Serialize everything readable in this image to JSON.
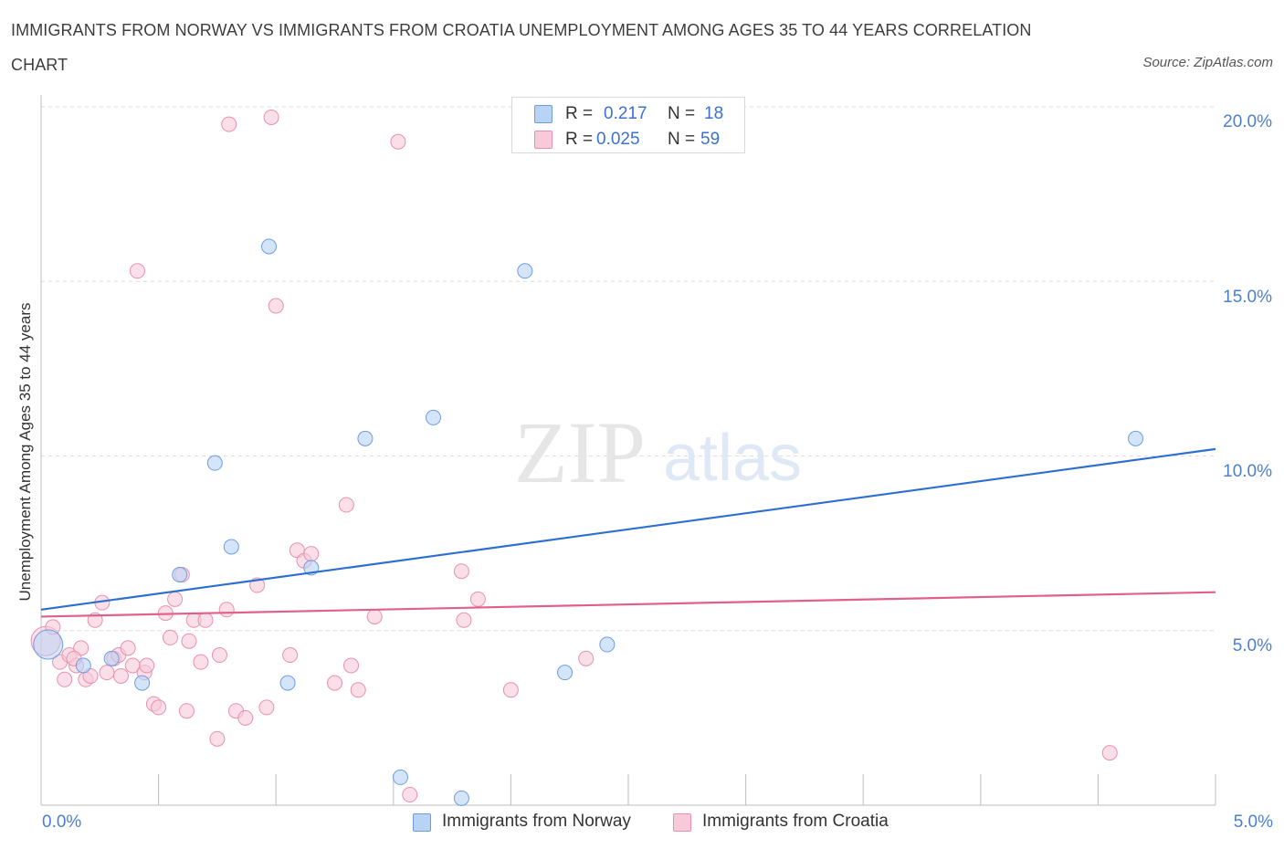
{
  "title": "IMMIGRANTS FROM NORWAY VS IMMIGRANTS FROM CROATIA UNEMPLOYMENT AMONG AGES 35 TO 44 YEARS CORRELATION CHART",
  "source": "Source: ZipAtlas.com",
  "watermark": {
    "zip": "ZIP",
    "atlas": "atlas"
  },
  "colors": {
    "norway_fill": "#b9d3f5",
    "norway_stroke": "#6d9de0",
    "norway_line": "#2d6fd0",
    "croatia_fill": "#f8c9d8",
    "croatia_stroke": "#e890ad",
    "croatia_line": "#e0608c",
    "axis_text": "#4a7fd1",
    "grid": "#dcdcdc"
  },
  "stats": {
    "norway": {
      "r_label": "R =",
      "r_value": "0.217",
      "n_label": "N =",
      "n_value": "18"
    },
    "croatia": {
      "r_label": "R =",
      "r_value": "0.025",
      "n_label": "N =",
      "n_value": "59"
    }
  },
  "chart_data": {
    "type": "scatter",
    "title": "IMMIGRANTS FROM NORWAY VS IMMIGRANTS FROM CROATIA UNEMPLOYMENT AMONG AGES 35 TO 44 YEARS CORRELATION CHART",
    "xlabel": "",
    "ylabel": "Unemployment Among Ages 35 to 44 years",
    "xlim": [
      0,
      5
    ],
    "ylim": [
      0,
      20.4
    ],
    "x_tick_labels": {
      "left": "0.0%",
      "right": "5.0%"
    },
    "y_ticks": [
      {
        "value": 5,
        "label": "5.0%"
      },
      {
        "value": 10,
        "label": "10.0%"
      },
      {
        "value": 15,
        "label": "15.0%"
      },
      {
        "value": 20,
        "label": "20.0%"
      }
    ],
    "grid": true,
    "legend_position": "bottom-center",
    "series": [
      {
        "name": "Immigrants from Norway",
        "trend": {
          "x": [
            0,
            5
          ],
          "y": [
            5.6,
            10.2
          ]
        },
        "points": [
          {
            "x": 0.03,
            "y": 4.6,
            "big": true
          },
          {
            "x": 0.18,
            "y": 4.0
          },
          {
            "x": 0.3,
            "y": 4.2
          },
          {
            "x": 0.43,
            "y": 3.5
          },
          {
            "x": 0.59,
            "y": 6.6
          },
          {
            "x": 0.74,
            "y": 9.8
          },
          {
            "x": 0.81,
            "y": 7.4
          },
          {
            "x": 0.97,
            "y": 16.0
          },
          {
            "x": 1.05,
            "y": 3.5
          },
          {
            "x": 1.15,
            "y": 6.8
          },
          {
            "x": 1.38,
            "y": 10.5
          },
          {
            "x": 1.53,
            "y": 0.8
          },
          {
            "x": 1.67,
            "y": 11.1
          },
          {
            "x": 1.79,
            "y": 0.2
          },
          {
            "x": 2.06,
            "y": 15.3
          },
          {
            "x": 2.23,
            "y": 3.8
          },
          {
            "x": 2.41,
            "y": 4.6
          },
          {
            "x": 4.66,
            "y": 10.5
          }
        ]
      },
      {
        "name": "Immigrants from Croatia",
        "trend": {
          "x": [
            0,
            5
          ],
          "y": [
            5.4,
            6.1
          ]
        },
        "points": [
          {
            "x": 0.02,
            "y": 4.7,
            "big": true
          },
          {
            "x": 0.05,
            "y": 5.1
          },
          {
            "x": 0.08,
            "y": 4.1
          },
          {
            "x": 0.1,
            "y": 3.6
          },
          {
            "x": 0.12,
            "y": 4.3
          },
          {
            "x": 0.15,
            "y": 4.0
          },
          {
            "x": 0.17,
            "y": 4.5
          },
          {
            "x": 0.19,
            "y": 3.6
          },
          {
            "x": 0.21,
            "y": 3.7
          },
          {
            "x": 0.23,
            "y": 5.3
          },
          {
            "x": 0.26,
            "y": 5.8
          },
          {
            "x": 0.28,
            "y": 3.8
          },
          {
            "x": 0.31,
            "y": 4.2
          },
          {
            "x": 0.33,
            "y": 4.3
          },
          {
            "x": 0.34,
            "y": 3.7
          },
          {
            "x": 0.37,
            "y": 4.5
          },
          {
            "x": 0.39,
            "y": 4.0
          },
          {
            "x": 0.41,
            "y": 15.3
          },
          {
            "x": 0.44,
            "y": 3.8
          },
          {
            "x": 0.45,
            "y": 4.0
          },
          {
            "x": 0.48,
            "y": 2.9
          },
          {
            "x": 0.5,
            "y": 2.8
          },
          {
            "x": 0.53,
            "y": 5.5
          },
          {
            "x": 0.55,
            "y": 4.8
          },
          {
            "x": 0.57,
            "y": 5.9
          },
          {
            "x": 0.6,
            "y": 6.6
          },
          {
            "x": 0.62,
            "y": 2.7
          },
          {
            "x": 0.63,
            "y": 4.7
          },
          {
            "x": 0.65,
            "y": 5.3
          },
          {
            "x": 0.68,
            "y": 4.1
          },
          {
            "x": 0.7,
            "y": 5.3
          },
          {
            "x": 0.75,
            "y": 1.9
          },
          {
            "x": 0.76,
            "y": 4.3
          },
          {
            "x": 0.79,
            "y": 5.6
          },
          {
            "x": 0.8,
            "y": 19.5
          },
          {
            "x": 0.83,
            "y": 2.7
          },
          {
            "x": 0.87,
            "y": 2.5
          },
          {
            "x": 0.92,
            "y": 6.3
          },
          {
            "x": 0.96,
            "y": 2.8
          },
          {
            "x": 0.98,
            "y": 19.7
          },
          {
            "x": 1.0,
            "y": 14.3
          },
          {
            "x": 1.06,
            "y": 4.3
          },
          {
            "x": 1.09,
            "y": 7.3
          },
          {
            "x": 1.12,
            "y": 7.0
          },
          {
            "x": 1.15,
            "y": 7.2
          },
          {
            "x": 1.25,
            "y": 3.5
          },
          {
            "x": 1.3,
            "y": 8.6
          },
          {
            "x": 1.32,
            "y": 4.0
          },
          {
            "x": 1.35,
            "y": 3.3
          },
          {
            "x": 1.42,
            "y": 5.4
          },
          {
            "x": 1.52,
            "y": 19.0
          },
          {
            "x": 1.57,
            "y": 0.3
          },
          {
            "x": 1.79,
            "y": 6.7
          },
          {
            "x": 1.8,
            "y": 5.3
          },
          {
            "x": 1.86,
            "y": 5.9
          },
          {
            "x": 2.0,
            "y": 3.3
          },
          {
            "x": 2.32,
            "y": 4.2
          },
          {
            "x": 4.55,
            "y": 1.5
          },
          {
            "x": 0.14,
            "y": 4.2
          }
        ]
      }
    ]
  }
}
